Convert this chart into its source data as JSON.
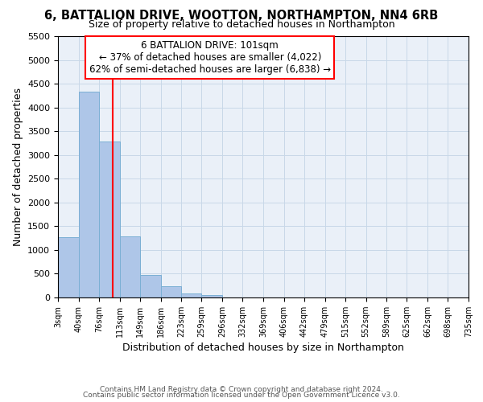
{
  "title": "6, BATTALION DRIVE, WOOTTON, NORTHAMPTON, NN4 6RB",
  "subtitle": "Size of property relative to detached houses in Northampton",
  "xlabel": "Distribution of detached houses by size in Northampton",
  "ylabel": "Number of detached properties",
  "bar_color": "#aec6e8",
  "bar_edgecolor": "#7bafd4",
  "grid_color": "#c8d8e8",
  "background_color": "#eaf0f8",
  "vline_x": 101,
  "vline_color": "red",
  "annotation_line1": "6 BATTALION DRIVE: 101sqm",
  "annotation_line2": "← 37% of detached houses are smaller (4,022)",
  "annotation_line3": "62% of semi-detached houses are larger (6,838) →",
  "annotation_box_edgecolor": "red",
  "bin_edges": [
    3,
    40,
    76,
    113,
    149,
    186,
    223,
    259,
    296,
    332,
    369,
    406,
    442,
    479,
    515,
    552,
    589,
    625,
    662,
    698,
    735
  ],
  "bar_heights": [
    1270,
    4330,
    3280,
    1280,
    480,
    240,
    80,
    50,
    0,
    0,
    0,
    0,
    0,
    0,
    0,
    0,
    0,
    0,
    0,
    0
  ],
  "ylim": [
    0,
    5500
  ],
  "yticks": [
    0,
    500,
    1000,
    1500,
    2000,
    2500,
    3000,
    3500,
    4000,
    4500,
    5000,
    5500
  ],
  "footnote1": "Contains HM Land Registry data © Crown copyright and database right 2024.",
  "footnote2": "Contains public sector information licensed under the Open Government Licence v3.0."
}
